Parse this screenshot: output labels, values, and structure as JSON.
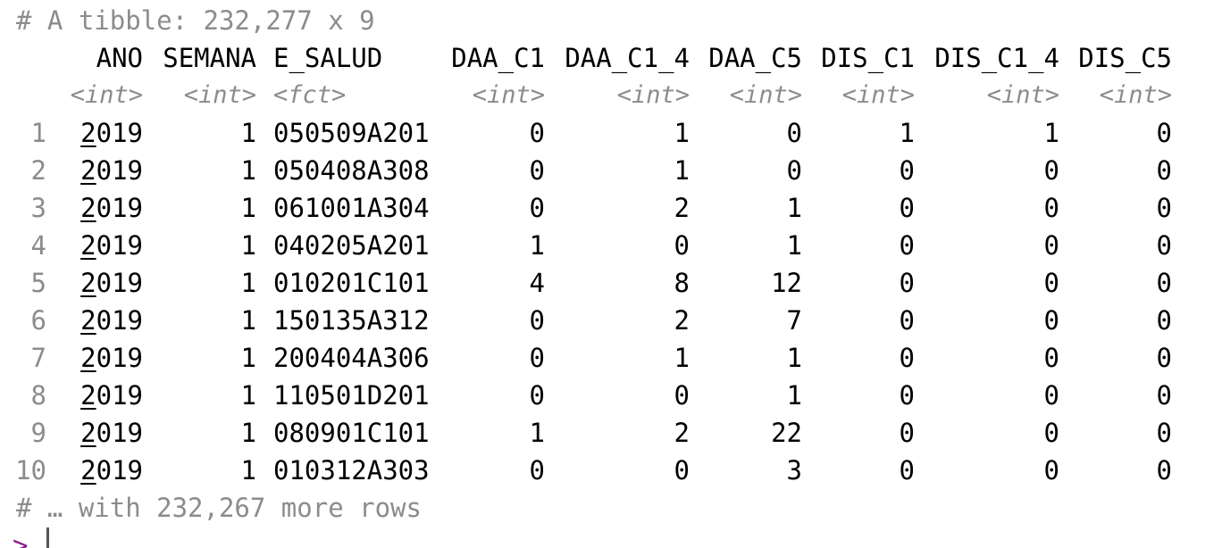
{
  "console": {
    "header": "# A tibble: 232,277 x 9",
    "footer": "# … with 232,267 more rows",
    "prompt": ">"
  },
  "table": {
    "columns": [
      {
        "name": "ANO",
        "type": "<int>"
      },
      {
        "name": "SEMANA",
        "type": "<int>"
      },
      {
        "name": "E_SALUD",
        "type": "<fct>"
      },
      {
        "name": "DAA_C1",
        "type": "<int>"
      },
      {
        "name": "DAA_C1_4",
        "type": "<int>"
      },
      {
        "name": "DAA_C5",
        "type": "<int>"
      },
      {
        "name": "DIS_C1",
        "type": "<int>"
      },
      {
        "name": "DIS_C1_4",
        "type": "<int>"
      },
      {
        "name": "DIS_C5",
        "type": "<int>"
      }
    ],
    "rows": [
      {
        "n": "1",
        "cells": [
          "2019",
          "1",
          "050509A201",
          "0",
          "1",
          "0",
          "1",
          "1",
          "0"
        ]
      },
      {
        "n": "2",
        "cells": [
          "2019",
          "1",
          "050408A308",
          "0",
          "1",
          "0",
          "0",
          "0",
          "0"
        ]
      },
      {
        "n": "3",
        "cells": [
          "2019",
          "1",
          "061001A304",
          "0",
          "2",
          "1",
          "0",
          "0",
          "0"
        ]
      },
      {
        "n": "4",
        "cells": [
          "2019",
          "1",
          "040205A201",
          "1",
          "0",
          "1",
          "0",
          "0",
          "0"
        ]
      },
      {
        "n": "5",
        "cells": [
          "2019",
          "1",
          "010201C101",
          "4",
          "8",
          "12",
          "0",
          "0",
          "0"
        ]
      },
      {
        "n": "6",
        "cells": [
          "2019",
          "1",
          "150135A312",
          "0",
          "2",
          "7",
          "0",
          "0",
          "0"
        ]
      },
      {
        "n": "7",
        "cells": [
          "2019",
          "1",
          "200404A306",
          "0",
          "1",
          "1",
          "0",
          "0",
          "0"
        ]
      },
      {
        "n": "8",
        "cells": [
          "2019",
          "1",
          "110501D201",
          "0",
          "0",
          "1",
          "0",
          "0",
          "0"
        ]
      },
      {
        "n": "9",
        "cells": [
          "2019",
          "1",
          "080901C101",
          "1",
          "2",
          "22",
          "0",
          "0",
          "0"
        ]
      },
      {
        "n": "10",
        "cells": [
          "2019",
          "1",
          "010312A303",
          "0",
          "0",
          "3",
          "0",
          "0",
          "0"
        ]
      }
    ]
  }
}
